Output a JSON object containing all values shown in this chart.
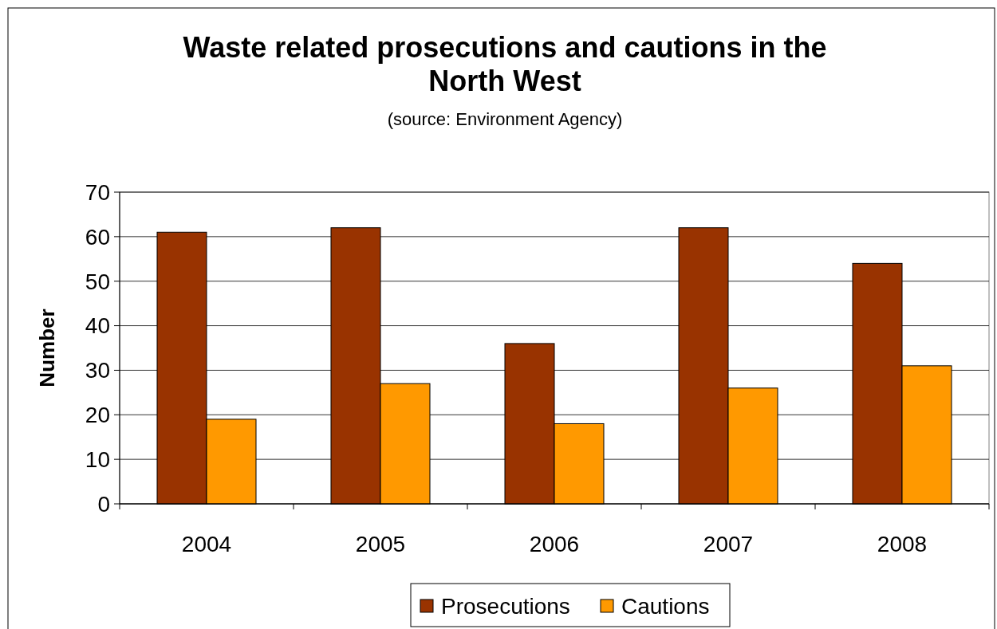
{
  "chart_data": {
    "type": "bar",
    "title": "Waste related prosecutions and cautions in the North West",
    "subtitle": "(source: Environment Agency)",
    "ylabel": "Number",
    "categories": [
      "2004",
      "2005",
      "2006",
      "2007",
      "2008"
    ],
    "series": [
      {
        "name": "Prosecutions",
        "color": "#993300",
        "values": [
          61,
          62,
          36,
          62,
          54
        ]
      },
      {
        "name": "Cautions",
        "color": "#ff9900",
        "values": [
          19,
          27,
          18,
          26,
          31
        ]
      }
    ],
    "ylim": [
      0,
      70
    ],
    "yticks": [
      0,
      10,
      20,
      30,
      40,
      50,
      60,
      70
    ],
    "grid": "y",
    "legend": "bottom"
  }
}
